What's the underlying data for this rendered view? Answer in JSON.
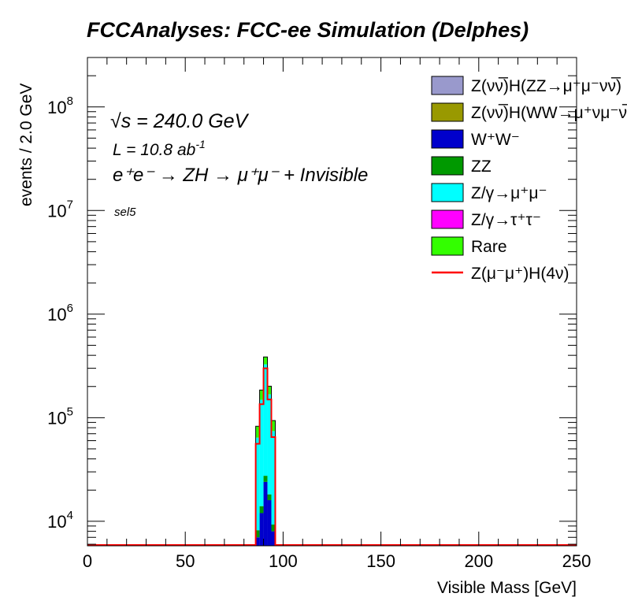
{
  "chart_data": {
    "type": "bar",
    "title": "FCCAnalyses: FCC-ee Simulation (Delphes)",
    "xlabel": "Visible Mass [GeV]",
    "ylabel": "events / 2.0 GeV",
    "xlim": [
      0,
      250
    ],
    "ylim": [
      5800,
      300000000
    ],
    "ylog": true,
    "xticks": [
      "0",
      "50",
      "100",
      "150",
      "200",
      "250"
    ],
    "yticks": [
      {
        "value": 10000,
        "base": "10",
        "exp": "4"
      },
      {
        "value": 100000,
        "base": "10",
        "exp": "5"
      },
      {
        "value": 1000000,
        "base": "10",
        "exp": "6"
      },
      {
        "value": 10000000,
        "base": "10",
        "exp": "7"
      },
      {
        "value": 100000000,
        "base": "10",
        "exp": "8"
      }
    ],
    "annotations": {
      "sqrt_s": "√s = 240.0 GeV",
      "lumi": "L = 10.8 ab",
      "lumi_exp": "-1",
      "process": "e⁺e⁻ → ZH → μ⁺μ⁻ + Invisible",
      "selection": "sel5"
    },
    "bin_edges": [
      86,
      88,
      90,
      92,
      94,
      96
    ],
    "series": [
      {
        "name": "Z(νν̅)H(ZZ→μ⁺μ⁻νν̅)",
        "color": "#9999cc",
        "values": [
          0,
          0,
          0,
          0,
          0
        ]
      },
      {
        "name": "Z(νν̅)H(WW→μ⁺νμ⁻ν̅)",
        "color": "#999900",
        "values": [
          0,
          0,
          0,
          0,
          0
        ]
      },
      {
        "name": "W⁺W⁻",
        "color": "#0000cc",
        "values": [
          7000,
          12000,
          24000,
          16000,
          8000
        ]
      },
      {
        "name": "ZZ",
        "color": "#009900",
        "values": [
          1200,
          2000,
          3500,
          2200,
          1300
        ]
      },
      {
        "name": "Z/γ→μ⁺μ⁻",
        "color": "#00ffff",
        "values": [
          56000,
          135000,
          300000,
          150000,
          65000
        ]
      },
      {
        "name": "Z/γ→τ⁺τ⁻",
        "color": "#ff00ff",
        "values": [
          0,
          0,
          0,
          0,
          0
        ]
      },
      {
        "name": "Rare",
        "color": "#33ff00",
        "values": [
          18500,
          36000,
          58000,
          33000,
          19500
        ]
      }
    ],
    "signal": {
      "name": "Z(μ⁻μ⁺)H(4ν)",
      "color": "#ff0000",
      "values": [
        56000,
        135000,
        300000,
        150000,
        65000
      ]
    },
    "legend_position": "top-right",
    "grid": false
  }
}
